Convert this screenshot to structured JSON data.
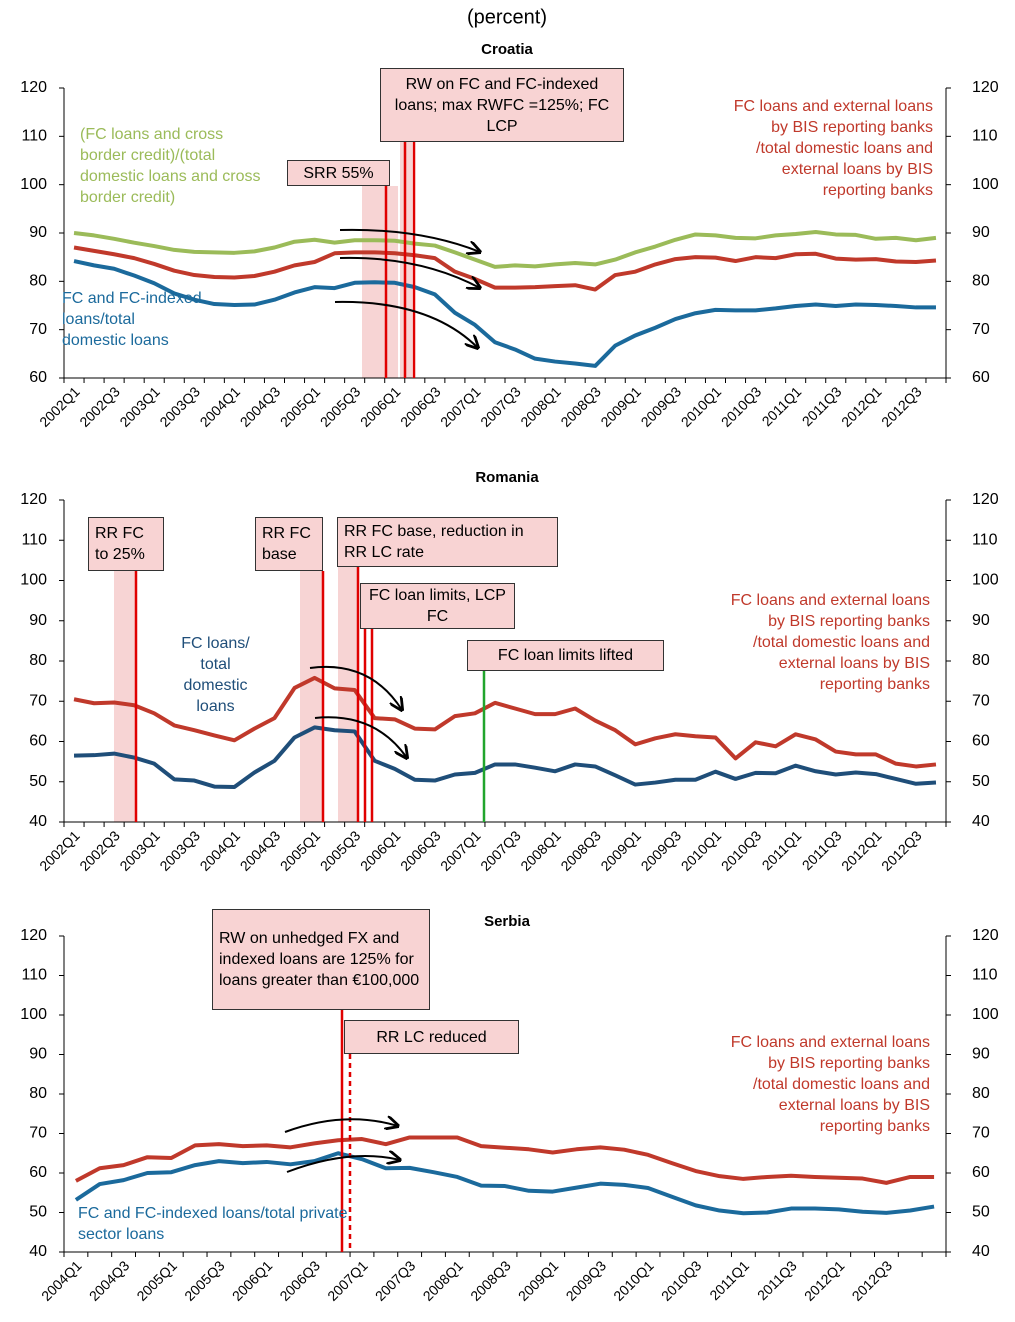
{
  "title": "(percent)",
  "chart_data": [
    {
      "type": "line",
      "title": "Croatia",
      "categories": [
        "2002Q1",
        null,
        "2002Q3",
        null,
        "2003Q1",
        null,
        "2003Q3",
        null,
        "2004Q1",
        null,
        "2004Q3",
        null,
        "2005Q1",
        null,
        "2005Q3",
        null,
        "2006Q1",
        null,
        "2006Q3",
        null,
        "2007Q1",
        null,
        "2007Q3",
        null,
        "2008Q1",
        null,
        "2008Q3",
        null,
        "2009Q1",
        null,
        "2009Q3",
        null,
        "2010Q1",
        null,
        "2010Q3",
        null,
        "2011Q1",
        null,
        "2011Q3",
        null,
        "2012Q1",
        null,
        "2012Q3",
        null
      ],
      "series": [
        {
          "name": "(FC loans and cross border credit)/(total domestic loans and cross border credit)",
          "color": "#9bbb59",
          "values": [
            90,
            89.5,
            88.8,
            88,
            87.3,
            86.5,
            86.1,
            86,
            85.9,
            86.2,
            87,
            88.2,
            88.6,
            88,
            88.5,
            88.5,
            88.4,
            87.8,
            87.4,
            86,
            84.5,
            83,
            83.3,
            83.1,
            83.5,
            83.8,
            83.5,
            84.5,
            86,
            87.2,
            88.6,
            89.7,
            89.5,
            89,
            88.9,
            89.5,
            89.8,
            90.2,
            89.7,
            89.6,
            88.8,
            89,
            88.5,
            89
          ]
        },
        {
          "name": "FC loans and external loans by BIS reporting banks /total domestic loans and external loans by BIS reporting banks",
          "color": "#c0392b",
          "values": [
            87,
            86.3,
            85.6,
            84.8,
            83.6,
            82.2,
            81.3,
            80.9,
            80.8,
            81.1,
            82,
            83.3,
            84,
            85.8,
            86,
            86,
            85.8,
            85.4,
            84.8,
            82,
            80.5,
            78.7,
            78.7,
            78.8,
            79,
            79.2,
            78.3,
            81.3,
            82,
            83.5,
            84.6,
            85,
            84.9,
            84.2,
            85,
            84.8,
            85.6,
            85.7,
            84.7,
            84.5,
            84.6,
            84.1,
            84,
            84.3
          ]
        },
        {
          "name": "FC and FC-indexed loans/total domestic loans",
          "color": "#1b6a9c",
          "values": [
            84.2,
            83.3,
            82.6,
            81.2,
            79.6,
            77.5,
            76.2,
            75.3,
            75.1,
            75.2,
            76.2,
            77.7,
            78.8,
            78.6,
            79.7,
            79.8,
            79.7,
            78.8,
            77.3,
            73.5,
            71,
            67.4,
            65.9,
            64,
            63.4,
            63,
            62.5,
            66.7,
            68.8,
            70.4,
            72.2,
            73.4,
            74.1,
            74,
            74,
            74.4,
            74.9,
            75.2,
            74.9,
            75.2,
            75.1,
            74.9,
            74.6,
            74.6
          ]
        }
      ],
      "ylim": [
        60,
        120
      ],
      "yticks": [
        60,
        70,
        80,
        90,
        100,
        110,
        120
      ],
      "y2lim": [
        60,
        120
      ],
      "y2ticks": [
        60,
        70,
        80,
        90,
        100,
        110,
        120
      ],
      "annotations": [
        {
          "text": "RW on FC and FC-indexed loans; max RWFC =125%; FC LCP"
        },
        {
          "text": "SRR 55%"
        }
      ]
    },
    {
      "type": "line",
      "title": "Romania",
      "categories": [
        "2002Q1",
        null,
        "2002Q3",
        null,
        "2003Q1",
        null,
        "2003Q3",
        null,
        "2004Q1",
        null,
        "2004Q3",
        null,
        "2005Q1",
        null,
        "2005Q3",
        null,
        "2006Q1",
        null,
        "2006Q3",
        null,
        "2007Q1",
        null,
        "2007Q3",
        null,
        "2008Q1",
        null,
        "2008Q3",
        null,
        "2009Q1",
        null,
        "2009Q3",
        null,
        "2010Q1",
        null,
        "2010Q3",
        null,
        "2011Q1",
        null,
        "2011Q3",
        null,
        "2012Q1",
        null,
        "2012Q3",
        null
      ],
      "series": [
        {
          "name": "FC loans and external loans by BIS reporting banks /total domestic loans and external loans by BIS reporting banks",
          "color": "#c0392b",
          "values": [
            70.5,
            69.5,
            69.7,
            69,
            67,
            64,
            62.8,
            61.5,
            60.3,
            63.2,
            65.8,
            73.3,
            75.8,
            73.2,
            72.8,
            65.8,
            65.5,
            63.2,
            63,
            66.3,
            67,
            69.6,
            68.2,
            66.8,
            66.8,
            68.2,
            65.2,
            62.8,
            59.3,
            60.8,
            61.8,
            61.3,
            61,
            55.8,
            59.8,
            58.8,
            61.8,
            60.5,
            57.5,
            56.8,
            56.8,
            54.5,
            53.8,
            54.3
          ]
        },
        {
          "name": "FC loans/ total domestic loans",
          "color": "#1f4e79",
          "values": [
            56.5,
            56.6,
            57,
            56,
            54.5,
            50.6,
            50.3,
            48.8,
            48.7,
            52.3,
            55.2,
            61,
            63.5,
            62.8,
            62.5,
            55.2,
            53.2,
            50.5,
            50.3,
            51.8,
            52.2,
            54.3,
            54.3,
            53.5,
            52.6,
            54.3,
            53.8,
            51.6,
            49.3,
            49.8,
            50.5,
            50.5,
            52.5,
            50.7,
            52.2,
            52.1,
            54,
            52.6,
            51.8,
            52.3,
            51.9,
            50.7,
            49.5,
            49.8
          ]
        }
      ],
      "ylim": [
        40,
        120
      ],
      "yticks": [
        40,
        50,
        60,
        70,
        80,
        90,
        100,
        110,
        120
      ],
      "y2lim": [
        40,
        120
      ],
      "y2ticks": [
        40,
        50,
        60,
        70,
        80,
        90,
        100,
        110,
        120
      ],
      "annotations": [
        {
          "text": "RR FC to 25%"
        },
        {
          "text": "RR FC base"
        },
        {
          "text": "RR FC base, reduction in RR LC rate"
        },
        {
          "text": "FC loan limits, LCP FC"
        },
        {
          "text": "FC loan limits lifted"
        }
      ]
    },
    {
      "type": "line",
      "title": "Serbia",
      "categories": [
        "2004Q1",
        null,
        "2004Q3",
        null,
        "2005Q1",
        null,
        "2005Q3",
        null,
        "2006Q1",
        null,
        "2006Q3",
        null,
        "2007Q1",
        null,
        "2007Q3",
        null,
        "2008Q1",
        null,
        "2008Q3",
        null,
        "2009Q1",
        null,
        "2009Q3",
        null,
        "2010Q1",
        null,
        "2010Q3",
        null,
        "2011Q1",
        null,
        "2011Q3",
        null,
        "2012Q1",
        null,
        "2012Q3",
        null,
        null
      ],
      "series": [
        {
          "name": "FC loans and external loans by BIS reporting banks /total domestic loans and external loans by BIS reporting banks",
          "color": "#c0392b",
          "values": [
            58,
            61.2,
            62,
            64,
            63.8,
            67,
            67.3,
            66.8,
            67,
            66.5,
            67.5,
            68.3,
            68.6,
            67.3,
            69,
            69,
            69,
            66.8,
            66.4,
            66,
            65.2,
            66,
            66.5,
            65.9,
            64.6,
            62.5,
            60.5,
            59.2,
            58.5,
            59,
            59.3,
            59,
            58.8,
            58.6,
            57.5,
            59,
            59
          ]
        },
        {
          "name": "FC and FC-indexed loans/total private sector loans",
          "color": "#1b6a9c",
          "values": [
            53.2,
            57.2,
            58.2,
            60,
            60.2,
            62,
            63,
            62.5,
            62.8,
            62.2,
            63,
            65,
            63.5,
            61.2,
            61.3,
            60.2,
            59,
            56.8,
            56.7,
            55.5,
            55.3,
            56.3,
            57.3,
            57,
            56.2,
            54,
            51.8,
            50.5,
            49.8,
            50,
            51,
            51,
            50.8,
            50.2,
            49.9,
            50.5,
            51.5
          ]
        }
      ],
      "ylim": [
        40,
        120
      ],
      "yticks": [
        40,
        50,
        60,
        70,
        80,
        90,
        100,
        110,
        120
      ],
      "y2lim": [
        40,
        120
      ],
      "y2ticks": [
        40,
        50,
        60,
        70,
        80,
        90,
        100,
        110,
        120
      ],
      "annotations": [
        {
          "text": "RW on unhedged FX and indexed loans are 125% for loans greater than €100,000"
        },
        {
          "text": "RR LC reduced"
        }
      ]
    }
  ]
}
